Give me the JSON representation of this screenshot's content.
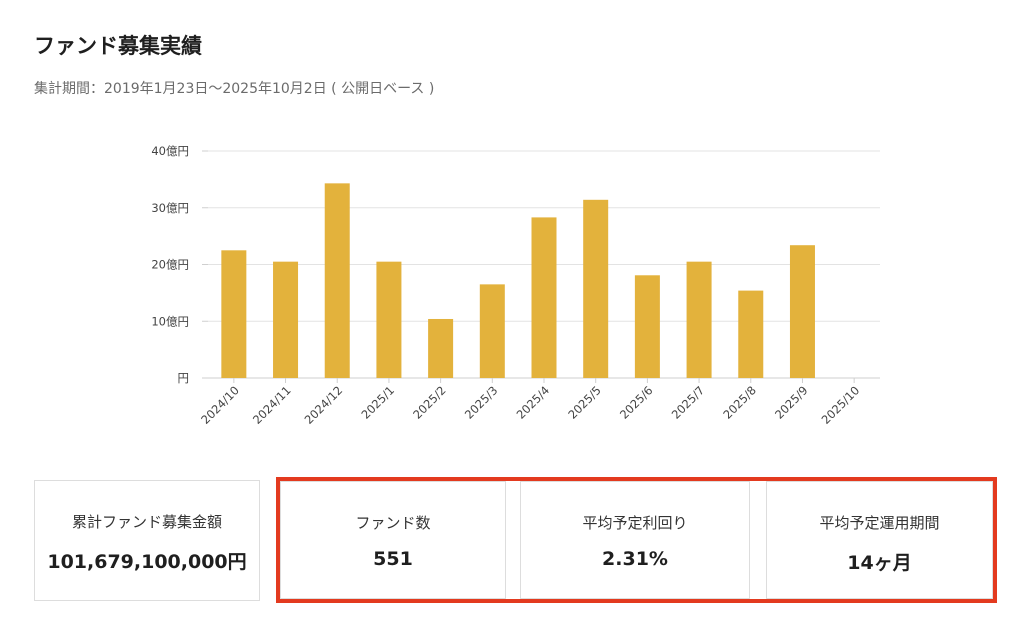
{
  "header": {
    "title": "ファンド募集実績",
    "period": "集計期間：2019年1月23日〜2025年10月2日 ( 公開日ベース )"
  },
  "chart_data": {
    "type": "bar",
    "categories": [
      "2024/10",
      "2024/11",
      "2024/12",
      "2025/1",
      "2025/2",
      "2025/3",
      "2025/4",
      "2025/5",
      "2025/6",
      "2025/7",
      "2025/8",
      "2025/9",
      "2025/10"
    ],
    "values": [
      22.5,
      20.5,
      34.3,
      20.5,
      10.4,
      16.5,
      28.3,
      31.4,
      18.1,
      20.5,
      15.4,
      23.4,
      0
    ],
    "value_unit": "億円",
    "ylim": [
      0,
      40
    ],
    "yticks": [
      0,
      10,
      20,
      30,
      40
    ],
    "ytick_labels": [
      "円",
      "10億円",
      "20億円",
      "30億円",
      "40億円"
    ],
    "grid": true,
    "bar_color": "#e3b23c"
  },
  "stats": {
    "total_label": "累計ファンド募集金額",
    "total_value": "101,679,100,000円",
    "count_label": "ファンド数",
    "count_value": "551",
    "yield_label": "平均予定利回り",
    "yield_value": "2.31%",
    "term_label": "平均予定運用期間",
    "term_value": "14ヶ月"
  },
  "colors": {
    "bar": "#e3b23c",
    "highlight_border": "#e33a1f",
    "grid": "#e3e3e3"
  }
}
